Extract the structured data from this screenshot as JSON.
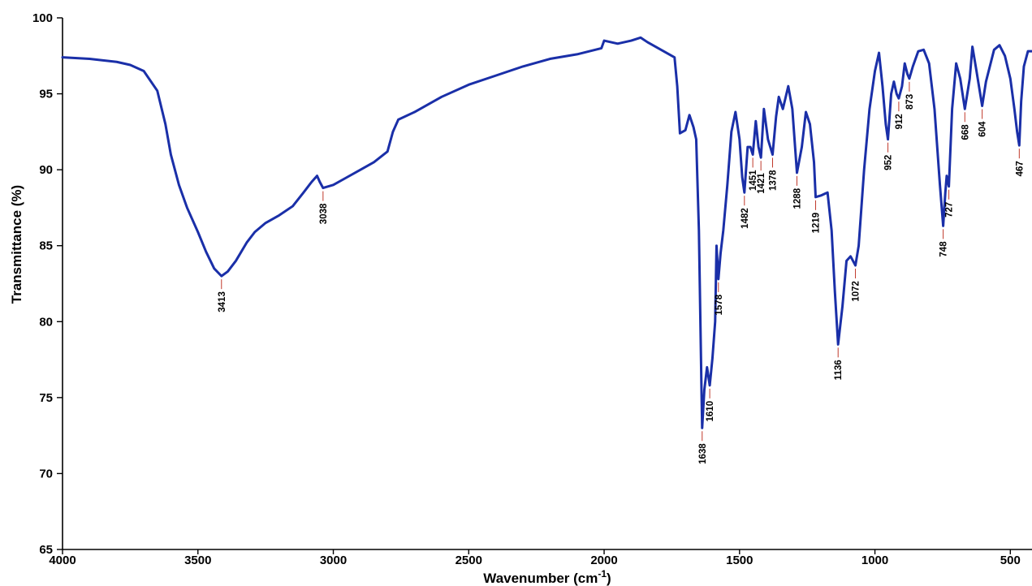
{
  "chart_data": {
    "type": "line",
    "title": "",
    "xlabel": "Wavenumber (cm",
    "xlabel_sup": "-1",
    "xlabel_suffix": ")",
    "ylabel": "Transmittance (%)",
    "xlim": [
      4000,
      420
    ],
    "ylim": [
      65,
      100
    ],
    "x_reversed": true,
    "grid": false,
    "line_color": "#1a2fa8",
    "leader_color": "#c0392b",
    "x_ticks": [
      4000,
      3500,
      3000,
      2500,
      2000,
      1500,
      1000,
      500
    ],
    "y_ticks": [
      65,
      70,
      75,
      80,
      85,
      90,
      95,
      100
    ],
    "series": [
      {
        "points": [
          [
            4000,
            97.4
          ],
          [
            3900,
            97.3
          ],
          [
            3800,
            97.1
          ],
          [
            3750,
            96.9
          ],
          [
            3700,
            96.5
          ],
          [
            3650,
            95.2
          ],
          [
            3620,
            93.0
          ],
          [
            3600,
            91.0
          ],
          [
            3570,
            89.0
          ],
          [
            3540,
            87.5
          ],
          [
            3500,
            85.9
          ],
          [
            3470,
            84.6
          ],
          [
            3440,
            83.5
          ],
          [
            3413,
            83.0
          ],
          [
            3390,
            83.3
          ],
          [
            3360,
            84.0
          ],
          [
            3320,
            85.2
          ],
          [
            3290,
            85.9
          ],
          [
            3250,
            86.5
          ],
          [
            3200,
            87.0
          ],
          [
            3150,
            87.6
          ],
          [
            3110,
            88.5
          ],
          [
            3080,
            89.2
          ],
          [
            3060,
            89.6
          ],
          [
            3050,
            89.2
          ],
          [
            3038,
            88.8
          ],
          [
            3000,
            89.0
          ],
          [
            2950,
            89.5
          ],
          [
            2900,
            90.0
          ],
          [
            2850,
            90.5
          ],
          [
            2800,
            91.2
          ],
          [
            2780,
            92.5
          ],
          [
            2760,
            93.3
          ],
          [
            2700,
            93.8
          ],
          [
            2650,
            94.3
          ],
          [
            2600,
            94.8
          ],
          [
            2500,
            95.6
          ],
          [
            2400,
            96.2
          ],
          [
            2300,
            96.8
          ],
          [
            2200,
            97.3
          ],
          [
            2100,
            97.6
          ],
          [
            2010,
            98.0
          ],
          [
            2000,
            98.5
          ],
          [
            1950,
            98.3
          ],
          [
            1900,
            98.5
          ],
          [
            1865,
            98.7
          ],
          [
            1840,
            98.4
          ],
          [
            1780,
            97.8
          ],
          [
            1740,
            97.4
          ],
          [
            1730,
            95.5
          ],
          [
            1720,
            92.4
          ],
          [
            1700,
            92.6
          ],
          [
            1685,
            93.6
          ],
          [
            1670,
            92.8
          ],
          [
            1660,
            92.0
          ],
          [
            1650,
            86.0
          ],
          [
            1640,
            75.0
          ],
          [
            1638,
            73.0
          ],
          [
            1630,
            75.5
          ],
          [
            1620,
            77.0
          ],
          [
            1610,
            75.8
          ],
          [
            1600,
            77.6
          ],
          [
            1590,
            80.0
          ],
          [
            1585,
            85.0
          ],
          [
            1578,
            82.8
          ],
          [
            1570,
            84.5
          ],
          [
            1560,
            86.0
          ],
          [
            1545,
            89.0
          ],
          [
            1530,
            92.5
          ],
          [
            1515,
            93.8
          ],
          [
            1500,
            92.0
          ],
          [
            1490,
            89.5
          ],
          [
            1482,
            88.5
          ],
          [
            1470,
            91.5
          ],
          [
            1460,
            91.5
          ],
          [
            1451,
            91.0
          ],
          [
            1440,
            93.2
          ],
          [
            1430,
            91.5
          ],
          [
            1421,
            90.8
          ],
          [
            1410,
            94.0
          ],
          [
            1395,
            92.0
          ],
          [
            1378,
            91.0
          ],
          [
            1365,
            93.5
          ],
          [
            1355,
            94.8
          ],
          [
            1340,
            94.0
          ],
          [
            1320,
            95.5
          ],
          [
            1305,
            94.0
          ],
          [
            1288,
            89.8
          ],
          [
            1270,
            91.5
          ],
          [
            1255,
            93.8
          ],
          [
            1240,
            93.0
          ],
          [
            1225,
            90.5
          ],
          [
            1219,
            88.2
          ],
          [
            1200,
            88.3
          ],
          [
            1175,
            88.5
          ],
          [
            1160,
            86.0
          ],
          [
            1148,
            82.0
          ],
          [
            1136,
            78.5
          ],
          [
            1120,
            81.0
          ],
          [
            1105,
            84.0
          ],
          [
            1090,
            84.3
          ],
          [
            1072,
            83.7
          ],
          [
            1060,
            85.0
          ],
          [
            1040,
            90.0
          ],
          [
            1020,
            94.0
          ],
          [
            1000,
            96.5
          ],
          [
            985,
            97.7
          ],
          [
            972,
            95.5
          ],
          [
            960,
            93.0
          ],
          [
            952,
            92.0
          ],
          [
            940,
            95.0
          ],
          [
            930,
            95.8
          ],
          [
            920,
            95.0
          ],
          [
            912,
            94.7
          ],
          [
            900,
            95.5
          ],
          [
            890,
            97.0
          ],
          [
            880,
            96.3
          ],
          [
            873,
            96.0
          ],
          [
            860,
            96.8
          ],
          [
            840,
            97.8
          ],
          [
            820,
            97.9
          ],
          [
            800,
            97.0
          ],
          [
            780,
            94.0
          ],
          [
            760,
            89.0
          ],
          [
            748,
            86.3
          ],
          [
            740,
            88.5
          ],
          [
            735,
            89.6
          ],
          [
            727,
            88.9
          ],
          [
            715,
            94.0
          ],
          [
            700,
            97.0
          ],
          [
            685,
            96.0
          ],
          [
            668,
            94.0
          ],
          [
            650,
            96.0
          ],
          [
            640,
            98.1
          ],
          [
            625,
            96.5
          ],
          [
            604,
            94.2
          ],
          [
            590,
            95.8
          ],
          [
            560,
            97.9
          ],
          [
            540,
            98.2
          ],
          [
            520,
            97.5
          ],
          [
            500,
            96.0
          ],
          [
            485,
            94.0
          ],
          [
            475,
            92.5
          ],
          [
            467,
            91.6
          ],
          [
            460,
            94.5
          ],
          [
            450,
            96.8
          ],
          [
            435,
            97.8
          ],
          [
            420,
            97.8
          ]
        ]
      }
    ],
    "annotations": [
      {
        "label": "3413",
        "x": 3413,
        "y": 83.0
      },
      {
        "label": "3038",
        "x": 3038,
        "y": 88.8
      },
      {
        "label": "1638",
        "x": 1638,
        "y": 73.0
      },
      {
        "label": "1610",
        "x": 1610,
        "y": 75.8
      },
      {
        "label": "1578",
        "x": 1578,
        "y": 82.8
      },
      {
        "label": "1482",
        "x": 1482,
        "y": 88.5
      },
      {
        "label": "1451",
        "x": 1451,
        "y": 91.0
      },
      {
        "label": "1421",
        "x": 1421,
        "y": 90.8
      },
      {
        "label": "1378",
        "x": 1378,
        "y": 91.0
      },
      {
        "label": "1288",
        "x": 1288,
        "y": 89.8
      },
      {
        "label": "1219",
        "x": 1219,
        "y": 88.2
      },
      {
        "label": "1136",
        "x": 1136,
        "y": 78.5
      },
      {
        "label": "1072",
        "x": 1072,
        "y": 83.7
      },
      {
        "label": "952",
        "x": 952,
        "y": 92.0
      },
      {
        "label": "912",
        "x": 912,
        "y": 94.7
      },
      {
        "label": "873",
        "x": 873,
        "y": 96.0
      },
      {
        "label": "748",
        "x": 748,
        "y": 86.3
      },
      {
        "label": "727",
        "x": 727,
        "y": 88.9
      },
      {
        "label": "668",
        "x": 668,
        "y": 94.0
      },
      {
        "label": "604",
        "x": 604,
        "y": 94.2
      },
      {
        "label": "467",
        "x": 467,
        "y": 91.6
      }
    ]
  }
}
